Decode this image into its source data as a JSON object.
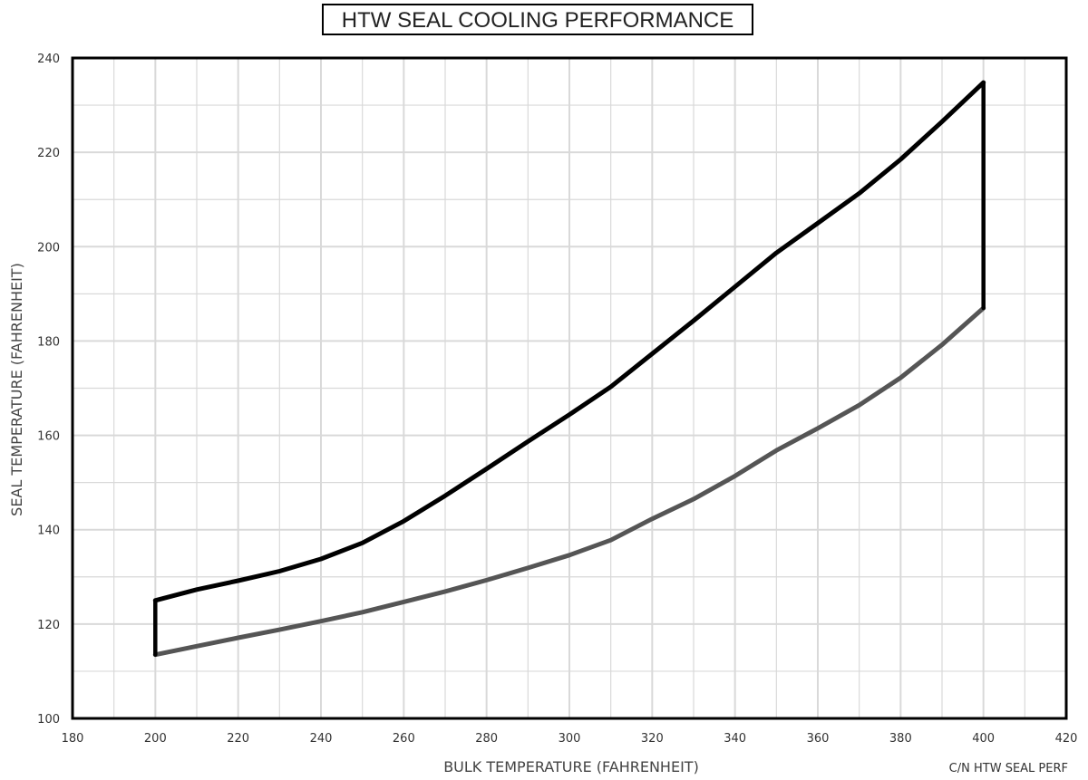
{
  "chart_data": {
    "type": "line",
    "title": "HTW SEAL COOLING PERFORMANCE",
    "xlabel": "BULK TEMPERATURE (FAHRENHEIT)",
    "ylabel": "SEAL TEMPERATURE (FAHRENHEIT)",
    "reference": "C/N HTW SEAL PERF",
    "xlim": [
      180,
      420
    ],
    "ylim": [
      100,
      240
    ],
    "x_ticks": [
      180,
      200,
      220,
      240,
      260,
      280,
      300,
      320,
      340,
      360,
      380,
      400,
      420
    ],
    "y_ticks": [
      100,
      120,
      140,
      160,
      180,
      200,
      220,
      240
    ],
    "x_minor_step": 10,
    "y_minor_step": 10,
    "grid": true,
    "colors": {
      "upper": "#000000",
      "lower": "#555555",
      "boundary": "#000000",
      "grid": "#d9d9d9",
      "frame": "#000000"
    },
    "series": [
      {
        "id": "upper",
        "x": [
          200,
          210,
          220,
          230,
          240,
          250,
          260,
          270,
          280,
          290,
          300,
          310,
          320,
          330,
          340,
          350,
          360,
          370,
          380,
          390,
          400
        ],
        "y": [
          125,
          127.3,
          129.2,
          131.2,
          133.8,
          137.2,
          141.8,
          147.2,
          152.9,
          158.7,
          164.4,
          170.3,
          177.3,
          184.3,
          191.5,
          198.7,
          205,
          211.3,
          218.5,
          226.5,
          234.8
        ]
      },
      {
        "id": "lower",
        "x": [
          200,
          210,
          220,
          230,
          240,
          250,
          260,
          270,
          280,
          290,
          300,
          310,
          320,
          330,
          340,
          350,
          360,
          370,
          380,
          390,
          400
        ],
        "y": [
          113.5,
          115.3,
          117.1,
          118.8,
          120.6,
          122.5,
          124.7,
          126.9,
          129.3,
          131.9,
          134.6,
          137.8,
          142.3,
          146.5,
          151.4,
          156.8,
          161.5,
          166.4,
          172.2,
          179.2,
          187
        ]
      },
      {
        "id": "left-boundary",
        "x": [
          200,
          200
        ],
        "y": [
          113.5,
          125
        ]
      },
      {
        "id": "right-boundary",
        "x": [
          400,
          400
        ],
        "y": [
          187,
          234.8
        ]
      }
    ]
  }
}
